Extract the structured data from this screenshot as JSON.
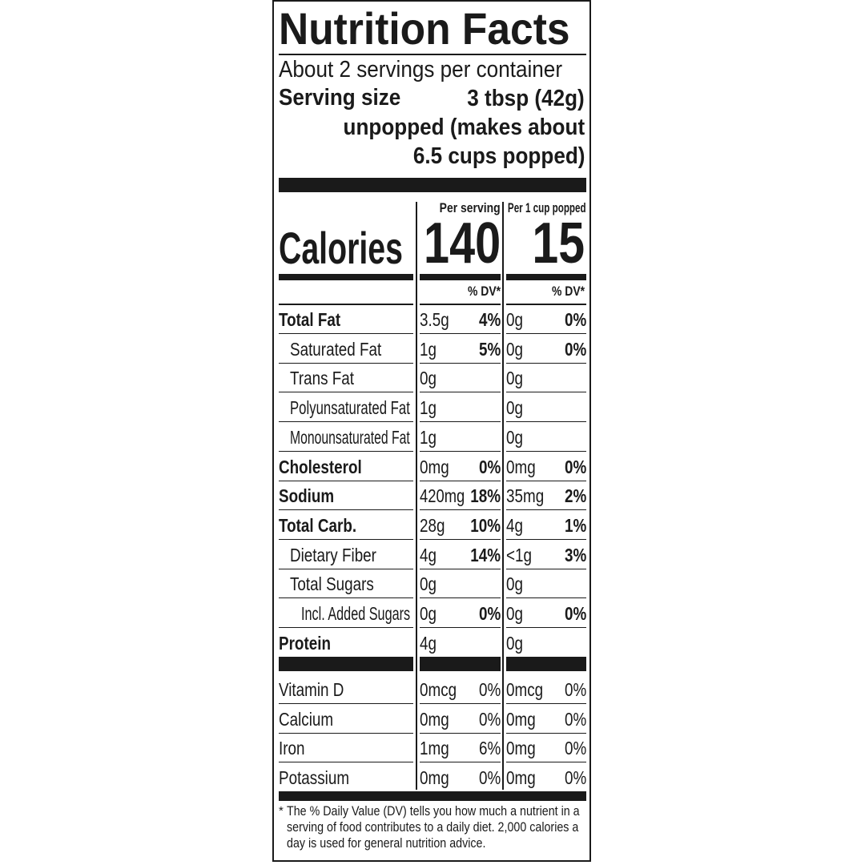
{
  "title": "Nutrition Facts",
  "servings_per_container": "About 2 servings per container",
  "serving_size_label": "Serving size",
  "serving_size_lines": [
    "3 tbsp (42g)",
    "unpopped (makes about",
    "6.5 cups popped)"
  ],
  "columns": {
    "col1_header": "Per serving",
    "col2_header": "Per 1 cup popped",
    "dv_header": "% DV*"
  },
  "calories": {
    "label": "Calories",
    "per_serving": "140",
    "per_cup": "15"
  },
  "nutrients": [
    {
      "name": "Total Fat",
      "bold": true,
      "indent": 0,
      "amt1": "3.5g",
      "dv1": "4%",
      "amt2": "0g",
      "dv2": "0%"
    },
    {
      "name": "Saturated Fat",
      "bold": false,
      "indent": 1,
      "amt1": "1g",
      "dv1": "5%",
      "amt2": "0g",
      "dv2": "0%"
    },
    {
      "name": "Trans Fat",
      "bold": false,
      "indent": 1,
      "amt1": "0g",
      "dv1": "",
      "amt2": "0g",
      "dv2": ""
    },
    {
      "name": "Polyunsaturated Fat",
      "bold": false,
      "indent": 1,
      "amt1": "1g",
      "dv1": "",
      "amt2": "0g",
      "dv2": ""
    },
    {
      "name": "Monounsaturated Fat",
      "bold": false,
      "indent": 1,
      "amt1": "1g",
      "dv1": "",
      "amt2": "0g",
      "dv2": ""
    },
    {
      "name": "Cholesterol",
      "bold": true,
      "indent": 0,
      "amt1": "0mg",
      "dv1": "0%",
      "amt2": "0mg",
      "dv2": "0%"
    },
    {
      "name": "Sodium",
      "bold": true,
      "indent": 0,
      "amt1": "420mg",
      "dv1": "18%",
      "amt2": "35mg",
      "dv2": "2%"
    },
    {
      "name": "Total Carb.",
      "bold": true,
      "indent": 0,
      "amt1": "28g",
      "dv1": "10%",
      "amt2": "4g",
      "dv2": "1%"
    },
    {
      "name": "Dietary Fiber",
      "bold": false,
      "indent": 1,
      "amt1": "4g",
      "dv1": "14%",
      "amt2": "<1g",
      "dv2": "3%"
    },
    {
      "name": "Total Sugars",
      "bold": false,
      "indent": 1,
      "amt1": "0g",
      "dv1": "",
      "amt2": "0g",
      "dv2": ""
    },
    {
      "name": "Incl. Added Sugars",
      "bold": false,
      "indent": 2,
      "amt1": "0g",
      "dv1": "0%",
      "amt2": "0g",
      "dv2": "0%"
    },
    {
      "name": "Protein",
      "bold": true,
      "indent": 0,
      "amt1": "4g",
      "dv1": "",
      "amt2": "0g",
      "dv2": ""
    }
  ],
  "vitamins": [
    {
      "name": "Vitamin D",
      "amt1": "0mcg",
      "dv1": "0%",
      "amt2": "0mcg",
      "dv2": "0%"
    },
    {
      "name": "Calcium",
      "amt1": "0mg",
      "dv1": "0%",
      "amt2": "0mg",
      "dv2": "0%"
    },
    {
      "name": "Iron",
      "amt1": "1mg",
      "dv1": "6%",
      "amt2": "0mg",
      "dv2": "0%"
    },
    {
      "name": "Potassium",
      "amt1": "0mg",
      "dv1": "0%",
      "amt2": "0mg",
      "dv2": "0%"
    }
  ],
  "footnote_star": "*",
  "footnote": "The % Daily Value (DV) tells you how much a nutrient in a serving of food contributes to a daily diet. 2,000 calories a day is used for general nutrition advice."
}
